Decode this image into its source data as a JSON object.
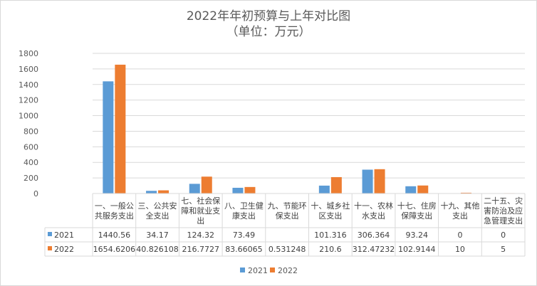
{
  "chart_data": {
    "type": "bar",
    "title": "2022年年初预算与上年对比图",
    "subtitle": "（单位：万元）",
    "categories": [
      [
        "一、一般公",
        "共服务支出"
      ],
      [
        "三、公共安",
        "全支出"
      ],
      [
        "七、社会保",
        "障和就业支",
        "出"
      ],
      [
        "八、卫生健",
        "康支出"
      ],
      [
        "九、节能环",
        "保支出"
      ],
      [
        "十、城乡社",
        "区支出"
      ],
      [
        "十一、农林",
        "水支出"
      ],
      [
        "十七、住房",
        "保障支出"
      ],
      [
        "十九、其他",
        "支出"
      ],
      [
        "二十五、灾",
        "害防治及应",
        "急管理支出"
      ]
    ],
    "series": [
      {
        "name": "2021",
        "color": "#5b9bd5",
        "values": [
          1440.56,
          34.17,
          124.32,
          73.49,
          null,
          101.316,
          306.364,
          93.24,
          0,
          0
        ],
        "labels": [
          "1440.56",
          "34.17",
          "124.32",
          "73.49",
          "",
          "101.316",
          "306.364",
          "93.24",
          "0",
          "0"
        ]
      },
      {
        "name": "2022",
        "color": "#ed7d31",
        "values": [
          1654.6206,
          40.826108,
          216.7727,
          83.66065,
          0.531248,
          210.6,
          312.47232,
          102.9144,
          10,
          5
        ],
        "labels": [
          "1654.6206",
          "40.826108",
          "216.7727",
          "83.66065",
          "0.531248",
          "210.6",
          "312.47232",
          "102.9144",
          "10",
          "5"
        ]
      }
    ],
    "ylim": [
      0,
      1800
    ],
    "yticks": [
      "0",
      "200",
      "400",
      "600",
      "800",
      "1000",
      "1200",
      "1400",
      "1600",
      "1800"
    ],
    "grid": true,
    "legend": "bottom"
  }
}
